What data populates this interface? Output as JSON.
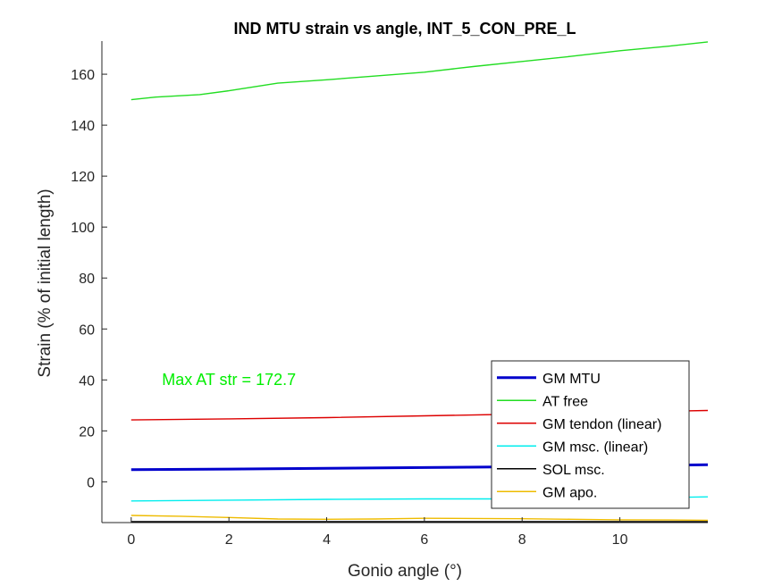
{
  "chart_data": {
    "type": "line",
    "title": "IND MTU strain vs angle, INT_5_CON_PRE_L",
    "xlabel": "Gonio angle (°)",
    "ylabel": "Strain (% of initial length)",
    "xlim": [
      -0.6,
      11.8
    ],
    "ylim": [
      -16,
      173
    ],
    "xticks": [
      0,
      2,
      4,
      6,
      8,
      10
    ],
    "yticks": [
      0,
      20,
      40,
      60,
      80,
      100,
      120,
      140,
      160
    ],
    "grid": false,
    "legend_position": "bottom-right",
    "annotation": {
      "text": "Max AT str = 172.7",
      "x": 2.0,
      "y": 38,
      "color": "#00ee00"
    },
    "series": [
      {
        "name": "GM MTU",
        "color": "#0000cc",
        "width": 3,
        "x": [
          0,
          2,
          4,
          6,
          8,
          10,
          11.8
        ],
        "values": [
          4.8,
          5.0,
          5.3,
          5.6,
          5.9,
          6.3,
          6.7
        ]
      },
      {
        "name": "AT free",
        "color": "#22dd22",
        "width": 1.4,
        "x": [
          0,
          0.5,
          1.4,
          2,
          3,
          4,
          5,
          6,
          7,
          8,
          9,
          10,
          11,
          11.8
        ],
        "values": [
          150,
          151,
          152,
          153.5,
          156.5,
          157.8,
          159.3,
          160.8,
          163,
          165,
          167,
          169.2,
          171,
          172.7
        ]
      },
      {
        "name": "GM tendon (linear)",
        "color": "#dd0000",
        "width": 1.4,
        "x": [
          0,
          2,
          4,
          6,
          8,
          10,
          11.8
        ],
        "values": [
          24.3,
          24.7,
          25.2,
          25.9,
          26.6,
          27.3,
          28.0
        ]
      },
      {
        "name": "GM msc. (linear)",
        "color": "#00eeee",
        "width": 1.4,
        "x": [
          0,
          2,
          4,
          6,
          8,
          10,
          11.8
        ],
        "values": [
          -7.5,
          -7.2,
          -6.9,
          -6.7,
          -6.7,
          -6.5,
          -5.9
        ]
      },
      {
        "name": "SOL msc.",
        "color": "#000000",
        "width": 1.4,
        "x": [
          0,
          11.8
        ],
        "values": [
          -15.6,
          -15.6
        ]
      },
      {
        "name": "GM apo.",
        "color": "#eebb00",
        "width": 1.4,
        "x": [
          0,
          1,
          2,
          3,
          4,
          5,
          6,
          7,
          8,
          9,
          10,
          11,
          11.8
        ],
        "values": [
          -13.2,
          -13.5,
          -14.0,
          -14.6,
          -14.7,
          -14.6,
          -14.3,
          -14.4,
          -14.5,
          -14.7,
          -14.9,
          -15.0,
          -15.1
        ]
      }
    ]
  }
}
